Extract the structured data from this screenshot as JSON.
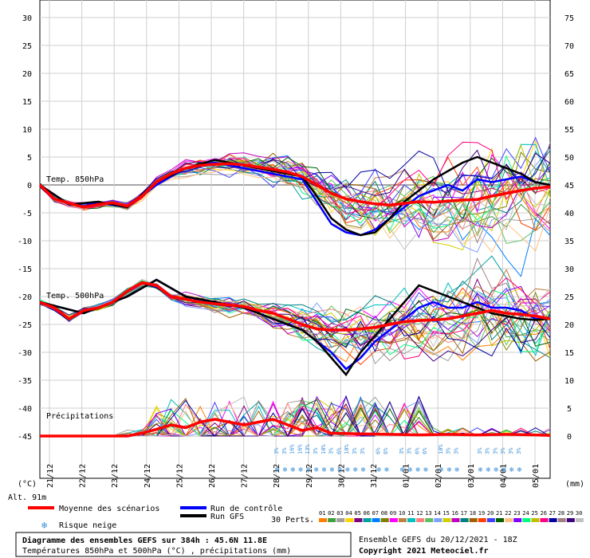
{
  "chart_data": {
    "type": "line",
    "title": "Diagramme des ensembles GEFS sur 384h : 45.6N 11.8E",
    "subtitle": "Températures 850hPa et 500hPa (°C) , précipitations (mm)",
    "left_axis": {
      "unit": "(°C)",
      "ylim": [
        -45,
        30
      ],
      "ticks": [
        "30",
        "25",
        "20",
        "15",
        "10",
        "5",
        "0",
        "-5",
        "-10",
        "-15",
        "-20",
        "-25",
        "-30",
        "-35",
        "-40",
        "-45"
      ]
    },
    "right_axis": {
      "unit": "(mm)",
      "ticks": [
        "75",
        "70",
        "65",
        "60",
        "55",
        "50",
        "45",
        "40",
        "35",
        "30",
        "25",
        "20",
        "15",
        "10",
        "5",
        "0"
      ]
    },
    "x_labels": [
      "21/12",
      "22/12",
      "23/12",
      "24/12",
      "25/12",
      "26/12",
      "27/12",
      "28/12",
      "29/12",
      "30/12",
      "31/12",
      "01/01",
      "02/01",
      "03/01",
      "04/01",
      "05/01"
    ],
    "grid": true,
    "panel_labels": {
      "t850": "Temp. 850hPa",
      "t500": "Temp. 500hPa",
      "precip": "Précipitations"
    },
    "altitude": "Alt. 91m",
    "series": [
      {
        "name": "Moyenne des scénarios",
        "color": "#ff0000",
        "t850": [
          [
            0,
            0
          ],
          [
            1,
            -2.5
          ],
          [
            2,
            -3.3
          ],
          [
            3,
            -4
          ],
          [
            4,
            -3.5
          ],
          [
            5,
            -3.2
          ],
          [
            6,
            -3.8
          ],
          [
            7,
            -2
          ],
          [
            8,
            0.5
          ],
          [
            9,
            2
          ],
          [
            10,
            3
          ],
          [
            11,
            3.5
          ],
          [
            12,
            3.7
          ],
          [
            13,
            3.8
          ],
          [
            14,
            3.6
          ],
          [
            15,
            3.2
          ],
          [
            16,
            2.8
          ],
          [
            17,
            2.3
          ],
          [
            18,
            1.5
          ],
          [
            19,
            0
          ],
          [
            20,
            -1.5
          ],
          [
            21,
            -2.5
          ],
          [
            22,
            -3
          ],
          [
            23,
            -3.4
          ],
          [
            24,
            -3.6
          ],
          [
            25,
            -3.3
          ],
          [
            26,
            -3
          ],
          [
            27,
            -3.1
          ],
          [
            28,
            -2.9
          ],
          [
            29,
            -2.7
          ],
          [
            30,
            -2.6
          ],
          [
            31,
            -2
          ],
          [
            32,
            -1.5
          ],
          [
            33,
            -1
          ],
          [
            34,
            -0.6
          ],
          [
            35,
            -0.3
          ]
        ],
        "t500": [
          [
            0,
            -21
          ],
          [
            1,
            -22
          ],
          [
            2,
            -24
          ],
          [
            3,
            -22.5
          ],
          [
            4,
            -22
          ],
          [
            5,
            -21
          ],
          [
            6,
            -19
          ],
          [
            7,
            -17.5
          ],
          [
            8,
            -18
          ],
          [
            9,
            -20
          ],
          [
            10,
            -20.5
          ],
          [
            11,
            -21
          ],
          [
            12,
            -21.3
          ],
          [
            13,
            -21.5
          ],
          [
            14,
            -21.8
          ],
          [
            15,
            -22.5
          ],
          [
            16,
            -23
          ],
          [
            17,
            -24
          ],
          [
            18,
            -25
          ],
          [
            19,
            -25.8
          ],
          [
            20,
            -26
          ],
          [
            21,
            -26
          ],
          [
            22,
            -25.8
          ],
          [
            23,
            -25.5
          ],
          [
            24,
            -25
          ],
          [
            25,
            -24.5
          ],
          [
            26,
            -24.3
          ],
          [
            27,
            -24.2
          ],
          [
            28,
            -24
          ],
          [
            29,
            -23.5
          ],
          [
            30,
            -23
          ],
          [
            31,
            -22.5
          ],
          [
            32,
            -23
          ],
          [
            33,
            -23.2
          ],
          [
            34,
            -23.5
          ],
          [
            35,
            -24
          ]
        ],
        "precip_mm": [
          [
            0,
            0
          ],
          [
            3,
            0
          ],
          [
            6,
            0
          ],
          [
            7,
            0.5
          ],
          [
            8,
            1.2
          ],
          [
            9,
            2
          ],
          [
            10,
            1.5
          ],
          [
            11,
            2.5
          ],
          [
            12,
            3
          ],
          [
            13,
            2.5
          ],
          [
            14,
            2
          ],
          [
            15,
            2.5
          ],
          [
            16,
            3
          ],
          [
            17,
            2
          ],
          [
            18,
            1
          ],
          [
            19,
            1.5
          ],
          [
            20,
            0.5
          ],
          [
            22,
            0.4
          ],
          [
            24,
            0.3
          ],
          [
            26,
            0.2
          ],
          [
            28,
            0.3
          ],
          [
            30,
            0.2
          ],
          [
            32,
            0.3
          ],
          [
            34,
            0.2
          ],
          [
            35,
            0.1
          ]
        ]
      },
      {
        "name": "Run de contrôle",
        "color": "#0000ff",
        "t850": [
          [
            0,
            0
          ],
          [
            2,
            -3.5
          ],
          [
            4,
            -3.2
          ],
          [
            6,
            -4
          ],
          [
            8,
            0
          ],
          [
            10,
            3
          ],
          [
            12,
            4
          ],
          [
            14,
            3
          ],
          [
            16,
            2
          ],
          [
            18,
            1
          ],
          [
            19,
            -3
          ],
          [
            20,
            -7
          ],
          [
            21,
            -8.5
          ],
          [
            22,
            -9
          ],
          [
            23,
            -8
          ],
          [
            24,
            -6
          ],
          [
            25,
            -4
          ],
          [
            26,
            -2
          ],
          [
            27,
            -1
          ],
          [
            28,
            0
          ],
          [
            29,
            -1
          ],
          [
            30,
            1
          ],
          [
            31,
            0.5
          ],
          [
            32,
            1
          ],
          [
            33,
            1.5
          ],
          [
            34,
            0.5
          ],
          [
            35,
            0
          ]
        ],
        "t500": [
          [
            0,
            -21
          ],
          [
            3,
            -23
          ],
          [
            6,
            -20
          ],
          [
            8,
            -17
          ],
          [
            10,
            -20
          ],
          [
            12,
            -21
          ],
          [
            14,
            -22
          ],
          [
            16,
            -24
          ],
          [
            18,
            -26
          ],
          [
            19,
            -28
          ],
          [
            20,
            -30
          ],
          [
            21,
            -33
          ],
          [
            22,
            -31
          ],
          [
            23,
            -28
          ],
          [
            24,
            -26
          ],
          [
            25,
            -24
          ],
          [
            26,
            -22
          ],
          [
            27,
            -21
          ],
          [
            28,
            -22
          ],
          [
            29,
            -22
          ],
          [
            30,
            -21
          ],
          [
            31,
            -22
          ],
          [
            32,
            -22
          ],
          [
            33,
            -22.5
          ],
          [
            34,
            -24
          ],
          [
            35,
            -24
          ]
        ]
      },
      {
        "name": "Run GFS",
        "color": "#000000",
        "t850": [
          [
            0,
            0
          ],
          [
            2,
            -3.5
          ],
          [
            4,
            -3
          ],
          [
            6,
            -4
          ],
          [
            8,
            0.5
          ],
          [
            10,
            3
          ],
          [
            12,
            4.5
          ],
          [
            14,
            3.5
          ],
          [
            16,
            2.5
          ],
          [
            18,
            1.5
          ],
          [
            19,
            -2
          ],
          [
            20,
            -6
          ],
          [
            21,
            -8
          ],
          [
            22,
            -9
          ],
          [
            23,
            -8.5
          ],
          [
            24,
            -6
          ],
          [
            25,
            -3
          ],
          [
            26,
            -1
          ],
          [
            27,
            1
          ],
          [
            28,
            2.5
          ],
          [
            29,
            4
          ],
          [
            30,
            5
          ],
          [
            31,
            4
          ],
          [
            32,
            3
          ],
          [
            33,
            2
          ],
          [
            34,
            0.5
          ],
          [
            35,
            0
          ]
        ],
        "t500": [
          [
            0,
            -21
          ],
          [
            3,
            -23
          ],
          [
            6,
            -20
          ],
          [
            8,
            -17
          ],
          [
            10,
            -20
          ],
          [
            12,
            -21
          ],
          [
            14,
            -22
          ],
          [
            16,
            -24
          ],
          [
            18,
            -26
          ],
          [
            19,
            -28
          ],
          [
            20,
            -31
          ],
          [
            21,
            -34
          ],
          [
            22,
            -30
          ],
          [
            23,
            -27
          ],
          [
            24,
            -24
          ],
          [
            25,
            -21
          ],
          [
            26,
            -18
          ],
          [
            27,
            -19
          ],
          [
            28,
            -20
          ],
          [
            29,
            -21
          ],
          [
            30,
            -22
          ],
          [
            31,
            -23
          ],
          [
            32,
            -23.5
          ],
          [
            33,
            -24
          ],
          [
            34,
            -24.2
          ],
          [
            35,
            -24
          ]
        ]
      }
    ],
    "risk_snow_label": "Risque neige",
    "snow_risk_pct": [
      [
        15,
        "3%"
      ],
      [
        16,
        "3%"
      ],
      [
        17,
        "16%"
      ],
      [
        18,
        "16%"
      ],
      [
        19,
        "13%"
      ],
      [
        20,
        "3%"
      ],
      [
        21,
        "10%"
      ],
      [
        22,
        "3%"
      ],
      [
        23,
        "6%"
      ],
      [
        24,
        "10%"
      ],
      [
        25,
        "3%"
      ],
      [
        26,
        "3%"
      ],
      [
        28,
        "6%"
      ],
      [
        29,
        "6%"
      ],
      [
        31,
        "3%"
      ],
      [
        32,
        "3%"
      ],
      [
        33,
        "6%"
      ],
      [
        34,
        "6%"
      ],
      [
        36,
        "10%"
      ],
      [
        37,
        "3%"
      ],
      [
        38,
        "3%"
      ],
      [
        41,
        "3%"
      ],
      [
        42,
        "3%"
      ],
      [
        43,
        "3%"
      ],
      [
        44,
        "3%"
      ],
      [
        45,
        "3%"
      ],
      [
        46,
        "3%"
      ]
    ]
  },
  "legend": {
    "items": [
      {
        "label": "Moyenne des scénarios",
        "color": "#ff0000"
      },
      {
        "label": "Run de contrôle",
        "color": "#0000ff"
      },
      {
        "label": "Run GFS",
        "color": "#000000"
      }
    ],
    "perts_label": "30 Perts.",
    "pert_numbers": [
      "01",
      "02",
      "03",
      "04",
      "05",
      "06",
      "07",
      "08",
      "09",
      "10",
      "11",
      "12",
      "13",
      "14",
      "15",
      "16",
      "17",
      "18",
      "19",
      "20",
      "21",
      "22",
      "23",
      "24",
      "25",
      "26",
      "27",
      "28",
      "29",
      "30"
    ],
    "pert_colors": [
      "#ff7f00",
      "#40a040",
      "#a0a0a0",
      "#ffd700",
      "#800080",
      "#00a0a0",
      "#0080ff",
      "#808000",
      "#ff00ff",
      "#c08040",
      "#00c0c0",
      "#ff8080",
      "#60c060",
      "#80a0ff",
      "#d0d000",
      "#c000c0",
      "#008080",
      "#a06000",
      "#ff4000",
      "#4040ff",
      "#006000",
      "#ffc080",
      "#8000ff",
      "#00ff80",
      "#c0c000",
      "#ff0080",
      "#0000a0",
      "#a08080",
      "#400080",
      "#c0c0c0"
    ]
  },
  "footer": {
    "title": "Diagramme des ensembles GEFS sur 384h : 45.6N 11.8E",
    "subtitle": "Températures 850hPa et 500hPa (°C) , précipitations (mm)",
    "run": "Ensemble GEFS du 20/12/2021 - 18Z",
    "copyright": "Copyright 2021 Meteociel.fr"
  }
}
